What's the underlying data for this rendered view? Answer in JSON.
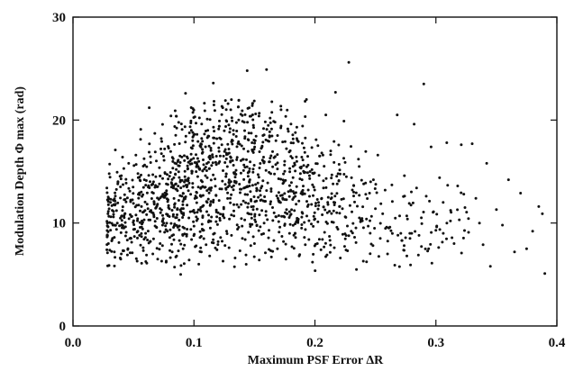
{
  "chart_data": {
    "type": "scatter",
    "title": "",
    "xlabel": "Maximum PSF Error ΔR",
    "ylabel": "Modulation Depth  Φ max (rad)",
    "xlim": [
      0.0,
      0.4
    ],
    "ylim": [
      0,
      30
    ],
    "xticks": [
      0.0,
      0.1,
      0.2,
      0.3,
      0.4
    ],
    "xtick_labels": [
      "0.0",
      "0.1",
      "0.2",
      "0.3",
      "0.4"
    ],
    "yticks": [
      0,
      10,
      20,
      30
    ],
    "ytick_labels": [
      "0",
      "10",
      "20",
      "30"
    ],
    "grid": false,
    "legend": "none",
    "marker_color": "#111111",
    "approx_point_count": 1500,
    "points": [
      [
        0.028,
        7.4
      ],
      [
        0.031,
        12.0
      ],
      [
        0.033,
        9.8
      ],
      [
        0.035,
        17.1
      ],
      [
        0.036,
        11.2
      ],
      [
        0.038,
        8.1
      ],
      [
        0.039,
        6.6
      ],
      [
        0.04,
        14.6
      ],
      [
        0.041,
        16.4
      ],
      [
        0.042,
        7.3
      ],
      [
        0.043,
        10.9
      ],
      [
        0.044,
        9.1
      ],
      [
        0.045,
        6.9
      ],
      [
        0.046,
        15.8
      ],
      [
        0.047,
        13.1
      ],
      [
        0.048,
        8.5
      ],
      [
        0.049,
        7.1
      ],
      [
        0.05,
        11.9
      ],
      [
        0.051,
        9.4
      ],
      [
        0.052,
        16.6
      ],
      [
        0.053,
        6.3
      ],
      [
        0.054,
        12.8
      ],
      [
        0.055,
        8.8
      ],
      [
        0.056,
        19.1
      ],
      [
        0.057,
        10.2
      ],
      [
        0.058,
        7.6
      ],
      [
        0.059,
        14.2
      ],
      [
        0.06,
        9.0
      ],
      [
        0.061,
        6.1
      ],
      [
        0.062,
        11.4
      ],
      [
        0.063,
        21.2
      ],
      [
        0.064,
        8.2
      ],
      [
        0.065,
        13.7
      ],
      [
        0.066,
        7.0
      ],
      [
        0.067,
        10.6
      ],
      [
        0.068,
        16.9
      ],
      [
        0.069,
        9.6
      ],
      [
        0.07,
        6.5
      ],
      [
        0.071,
        12.3
      ],
      [
        0.072,
        8.0
      ],
      [
        0.073,
        18.2
      ],
      [
        0.074,
        7.8
      ],
      [
        0.075,
        10.0
      ],
      [
        0.076,
        14.9
      ],
      [
        0.077,
        6.2
      ],
      [
        0.078,
        9.2
      ],
      [
        0.079,
        11.7
      ],
      [
        0.08,
        8.6
      ],
      [
        0.081,
        20.4
      ],
      [
        0.082,
        7.2
      ],
      [
        0.083,
        13.4
      ],
      [
        0.084,
        9.9
      ],
      [
        0.085,
        6.7
      ],
      [
        0.086,
        10.8
      ],
      [
        0.087,
        16.1
      ],
      [
        0.088,
        8.3
      ],
      [
        0.089,
        5.0
      ],
      [
        0.09,
        12.6
      ],
      [
        0.091,
        7.5
      ],
      [
        0.092,
        9.5
      ],
      [
        0.093,
        22.6
      ],
      [
        0.094,
        8.9
      ],
      [
        0.095,
        15.3
      ],
      [
        0.096,
        6.4
      ],
      [
        0.097,
        11.1
      ],
      [
        0.098,
        8.4
      ],
      [
        0.099,
        18.8
      ],
      [
        0.1,
        9.7
      ],
      [
        0.101,
        7.7
      ],
      [
        0.102,
        13.0
      ],
      [
        0.103,
        10.4
      ],
      [
        0.104,
        6.0
      ],
      [
        0.105,
        17.5
      ],
      [
        0.106,
        8.7
      ],
      [
        0.107,
        11.6
      ],
      [
        0.108,
        9.3
      ],
      [
        0.109,
        20.9
      ],
      [
        0.11,
        7.9
      ],
      [
        0.111,
        14.4
      ],
      [
        0.112,
        10.1
      ],
      [
        0.113,
        6.8
      ],
      [
        0.114,
        12.1
      ],
      [
        0.115,
        8.1
      ],
      [
        0.116,
        23.6
      ],
      [
        0.117,
        9.0
      ],
      [
        0.118,
        15.9
      ],
      [
        0.119,
        7.4
      ],
      [
        0.12,
        11.0
      ],
      [
        0.121,
        19.4
      ],
      [
        0.122,
        8.6
      ],
      [
        0.123,
        13.3
      ],
      [
        0.124,
        6.3
      ],
      [
        0.125,
        10.5
      ],
      [
        0.126,
        21.9
      ],
      [
        0.127,
        9.2
      ],
      [
        0.128,
        16.7
      ],
      [
        0.129,
        7.6
      ],
      [
        0.13,
        12.4
      ],
      [
        0.131,
        8.8
      ],
      [
        0.132,
        18.0
      ],
      [
        0.133,
        10.7
      ],
      [
        0.134,
        6.6
      ],
      [
        0.135,
        14.0
      ],
      [
        0.136,
        9.4
      ],
      [
        0.137,
        20.0
      ],
      [
        0.138,
        7.3
      ],
      [
        0.139,
        11.8
      ],
      [
        0.14,
        8.5
      ],
      [
        0.141,
        15.1
      ],
      [
        0.142,
        10.3
      ],
      [
        0.143,
        6.9
      ],
      [
        0.144,
        24.8
      ],
      [
        0.145,
        9.1
      ],
      [
        0.146,
        13.6
      ],
      [
        0.147,
        7.8
      ],
      [
        0.148,
        17.8
      ],
      [
        0.149,
        11.3
      ],
      [
        0.15,
        8.0
      ],
      [
        0.151,
        20.6
      ],
      [
        0.152,
        9.8
      ],
      [
        0.153,
        14.7
      ],
      [
        0.154,
        6.4
      ],
      [
        0.155,
        12.2
      ],
      [
        0.156,
        8.9
      ],
      [
        0.157,
        18.5
      ],
      [
        0.158,
        10.0
      ],
      [
        0.159,
        7.1
      ],
      [
        0.16,
        24.9
      ],
      [
        0.161,
        13.9
      ],
      [
        0.162,
        9.3
      ],
      [
        0.163,
        16.3
      ],
      [
        0.164,
        6.7
      ],
      [
        0.165,
        11.5
      ],
      [
        0.166,
        8.3
      ],
      [
        0.167,
        19.8
      ],
      [
        0.168,
        10.6
      ],
      [
        0.169,
        7.5
      ],
      [
        0.17,
        14.3
      ],
      [
        0.171,
        9.6
      ],
      [
        0.172,
        21.0
      ],
      [
        0.173,
        12.7
      ],
      [
        0.174,
        8.2
      ],
      [
        0.175,
        16.0
      ],
      [
        0.176,
        6.5
      ],
      [
        0.177,
        10.9
      ],
      [
        0.178,
        18.9
      ],
      [
        0.179,
        9.0
      ],
      [
        0.18,
        13.2
      ],
      [
        0.181,
        7.7
      ],
      [
        0.182,
        15.5
      ],
      [
        0.183,
        11.2
      ],
      [
        0.184,
        8.6
      ],
      [
        0.185,
        19.3
      ],
      [
        0.186,
        10.2
      ],
      [
        0.187,
        6.8
      ],
      [
        0.188,
        14.8
      ],
      [
        0.189,
        9.5
      ],
      [
        0.19,
        12.9
      ],
      [
        0.191,
        17.3
      ],
      [
        0.192,
        7.9
      ],
      [
        0.193,
        22.0
      ],
      [
        0.194,
        11.6
      ],
      [
        0.195,
        8.4
      ],
      [
        0.196,
        15.0
      ],
      [
        0.197,
        9.9
      ],
      [
        0.198,
        6.2
      ],
      [
        0.199,
        13.5
      ],
      [
        0.2,
        10.4
      ],
      [
        0.201,
        18.1
      ],
      [
        0.202,
        8.0
      ],
      [
        0.203,
        12.0
      ],
      [
        0.204,
        16.5
      ],
      [
        0.205,
        7.4
      ],
      [
        0.206,
        10.8
      ],
      [
        0.207,
        14.1
      ],
      [
        0.208,
        9.1
      ],
      [
        0.209,
        20.5
      ],
      [
        0.21,
        6.9
      ],
      [
        0.211,
        12.5
      ],
      [
        0.212,
        8.7
      ],
      [
        0.213,
        17.0
      ],
      [
        0.214,
        10.1
      ],
      [
        0.215,
        13.8
      ],
      [
        0.216,
        7.6
      ],
      [
        0.217,
        22.7
      ],
      [
        0.218,
        11.0
      ],
      [
        0.219,
        9.4
      ],
      [
        0.22,
        15.7
      ],
      [
        0.221,
        6.6
      ],
      [
        0.222,
        12.3
      ],
      [
        0.223,
        8.9
      ],
      [
        0.224,
        19.9
      ],
      [
        0.225,
        10.6
      ],
      [
        0.226,
        14.5
      ],
      [
        0.227,
        7.3
      ],
      [
        0.228,
        25.6
      ],
      [
        0.229,
        11.7
      ],
      [
        0.23,
        9.2
      ],
      [
        0.232,
        13.0
      ],
      [
        0.234,
        8.1
      ],
      [
        0.236,
        16.2
      ],
      [
        0.238,
        10.3
      ],
      [
        0.24,
        6.3
      ],
      [
        0.242,
        12.8
      ],
      [
        0.244,
        9.7
      ],
      [
        0.246,
        14.0
      ],
      [
        0.248,
        7.8
      ],
      [
        0.25,
        11.4
      ],
      [
        0.252,
        16.6
      ],
      [
        0.254,
        8.5
      ],
      [
        0.256,
        10.9
      ],
      [
        0.258,
        13.2
      ],
      [
        0.26,
        7.0
      ],
      [
        0.262,
        9.6
      ],
      [
        0.264,
        12.1
      ],
      [
        0.266,
        5.9
      ],
      [
        0.268,
        20.5
      ],
      [
        0.27,
        10.7
      ],
      [
        0.272,
        8.3
      ],
      [
        0.274,
        14.6
      ],
      [
        0.276,
        6.8
      ],
      [
        0.278,
        11.9
      ],
      [
        0.28,
        9.0
      ],
      [
        0.282,
        19.6
      ],
      [
        0.284,
        13.4
      ],
      [
        0.286,
        8.8
      ],
      [
        0.288,
        10.5
      ],
      [
        0.29,
        23.5
      ],
      [
        0.292,
        12.6
      ],
      [
        0.294,
        7.5
      ],
      [
        0.296,
        17.4
      ],
      [
        0.298,
        11.1
      ],
      [
        0.3,
        9.3
      ],
      [
        0.303,
        14.4
      ],
      [
        0.306,
        12.0
      ],
      [
        0.309,
        17.8
      ],
      [
        0.312,
        10.2
      ],
      [
        0.315,
        8.0
      ],
      [
        0.318,
        13.6
      ],
      [
        0.321,
        17.6
      ],
      [
        0.324,
        11.5
      ],
      [
        0.327,
        9.1
      ],
      [
        0.33,
        17.7
      ],
      [
        0.333,
        12.4
      ],
      [
        0.336,
        10.0
      ],
      [
        0.339,
        7.9
      ],
      [
        0.342,
        15.8
      ],
      [
        0.345,
        5.8
      ],
      [
        0.35,
        11.3
      ],
      [
        0.355,
        9.8
      ],
      [
        0.36,
        14.2
      ],
      [
        0.365,
        7.2
      ],
      [
        0.37,
        12.9
      ],
      [
        0.375,
        7.5
      ],
      [
        0.38,
        9.2
      ],
      [
        0.385,
        11.6
      ],
      [
        0.388,
        10.9
      ],
      [
        0.39,
        5.1
      ]
    ]
  }
}
